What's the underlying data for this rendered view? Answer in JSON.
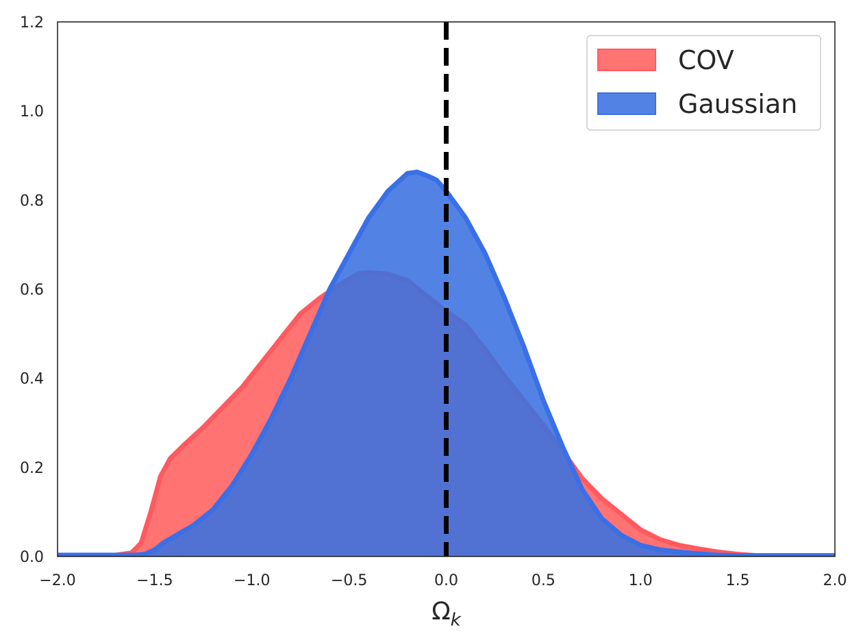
{
  "chart_data": {
    "type": "area",
    "title": "",
    "xlabel": "Ω",
    "xlabel_subscript": "k",
    "ylabel": "",
    "xlim": [
      -2.0,
      2.0
    ],
    "ylim": [
      0.0,
      1.2
    ],
    "xticks": [
      -2.0,
      -1.5,
      -1.0,
      -0.5,
      0.0,
      0.5,
      1.0,
      1.5,
      2.0
    ],
    "xtick_labels": [
      "−2.0",
      "−1.5",
      "−1.0",
      "−0.5",
      "0.0",
      "0.5",
      "1.0",
      "1.5",
      "2.0"
    ],
    "yticks": [
      0.0,
      0.2,
      0.4,
      0.6,
      0.8,
      1.0,
      1.2
    ],
    "ytick_labels": [
      "0.0",
      "0.2",
      "0.4",
      "0.6",
      "0.8",
      "1.0",
      "1.2"
    ],
    "grid": false,
    "legend_position": "top-right",
    "reference_line": {
      "x": 0.0,
      "style": "dashed",
      "color": "#000000"
    },
    "series": [
      {
        "name": "COV",
        "fill_color": "#ff6b6b",
        "line_color": "#ff5a5f",
        "points": [
          [
            -2.0,
            0.003
          ],
          [
            -1.7,
            0.003
          ],
          [
            -1.62,
            0.008
          ],
          [
            -1.57,
            0.03
          ],
          [
            -1.52,
            0.1
          ],
          [
            -1.47,
            0.18
          ],
          [
            -1.42,
            0.22
          ],
          [
            -1.35,
            0.25
          ],
          [
            -1.25,
            0.29
          ],
          [
            -1.15,
            0.335
          ],
          [
            -1.05,
            0.38
          ],
          [
            -0.95,
            0.435
          ],
          [
            -0.85,
            0.49
          ],
          [
            -0.75,
            0.545
          ],
          [
            -0.65,
            0.58
          ],
          [
            -0.55,
            0.61
          ],
          [
            -0.45,
            0.635
          ],
          [
            -0.4,
            0.638
          ],
          [
            -0.3,
            0.634
          ],
          [
            -0.2,
            0.62
          ],
          [
            -0.1,
            0.585
          ],
          [
            0.0,
            0.55
          ],
          [
            0.1,
            0.52
          ],
          [
            0.2,
            0.465
          ],
          [
            0.3,
            0.405
          ],
          [
            0.4,
            0.35
          ],
          [
            0.5,
            0.295
          ],
          [
            0.6,
            0.235
          ],
          [
            0.7,
            0.175
          ],
          [
            0.8,
            0.13
          ],
          [
            0.9,
            0.095
          ],
          [
            1.0,
            0.06
          ],
          [
            1.1,
            0.038
          ],
          [
            1.2,
            0.025
          ],
          [
            1.3,
            0.017
          ],
          [
            1.4,
            0.01
          ],
          [
            1.5,
            0.005
          ],
          [
            1.6,
            0.002
          ],
          [
            2.0,
            0.002
          ]
        ]
      },
      {
        "name": "Gaussian",
        "fill_color": "#3a72e0",
        "line_color": "#3a6fe6",
        "points": [
          [
            -2.0,
            0.003
          ],
          [
            -1.6,
            0.003
          ],
          [
            -1.55,
            0.005
          ],
          [
            -1.5,
            0.015
          ],
          [
            -1.45,
            0.032
          ],
          [
            -1.4,
            0.045
          ],
          [
            -1.3,
            0.07
          ],
          [
            -1.2,
            0.105
          ],
          [
            -1.1,
            0.16
          ],
          [
            -1.0,
            0.23
          ],
          [
            -0.9,
            0.31
          ],
          [
            -0.8,
            0.4
          ],
          [
            -0.7,
            0.5
          ],
          [
            -0.6,
            0.6
          ],
          [
            -0.5,
            0.68
          ],
          [
            -0.4,
            0.76
          ],
          [
            -0.3,
            0.82
          ],
          [
            -0.2,
            0.86
          ],
          [
            -0.15,
            0.863
          ],
          [
            -0.1,
            0.855
          ],
          [
            -0.05,
            0.845
          ],
          [
            0.0,
            0.82
          ],
          [
            0.1,
            0.76
          ],
          [
            0.2,
            0.68
          ],
          [
            0.3,
            0.58
          ],
          [
            0.4,
            0.47
          ],
          [
            0.5,
            0.35
          ],
          [
            0.6,
            0.245
          ],
          [
            0.7,
            0.15
          ],
          [
            0.8,
            0.085
          ],
          [
            0.9,
            0.048
          ],
          [
            1.0,
            0.025
          ],
          [
            1.1,
            0.015
          ],
          [
            1.2,
            0.01
          ],
          [
            1.3,
            0.006
          ],
          [
            1.4,
            0.003
          ],
          [
            1.5,
            0.002
          ],
          [
            2.0,
            0.002
          ]
        ]
      }
    ]
  }
}
